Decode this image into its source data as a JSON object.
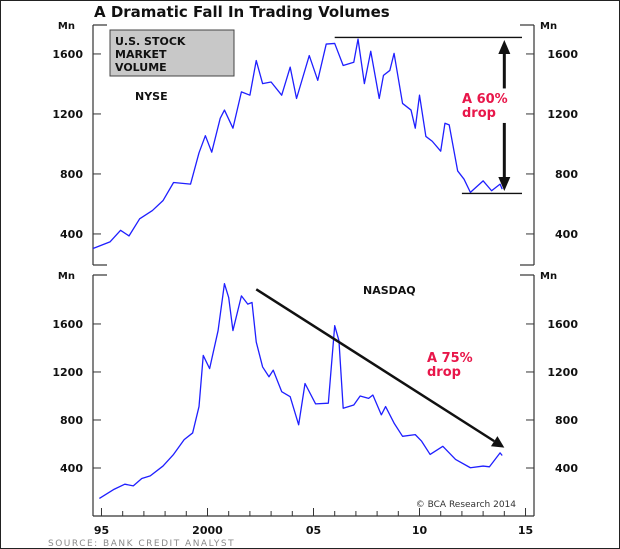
{
  "chart_data": [
    {
      "type": "line",
      "title": "A Dramatic Fall In Trading Volumes",
      "panel_label": "NYSE",
      "box_label": [
        "U.S. STOCK",
        "MARKET",
        "VOLUME"
      ],
      "ylabel": "Mn",
      "ylim": [
        193,
        1793
      ],
      "yticks": [
        400,
        800,
        1200,
        1600
      ],
      "xlim": [
        1994.6,
        2015.4
      ],
      "annotation": "A 60%",
      "annotation2": "drop",
      "color": "#1f1fff",
      "annotation_color": "#e8174a",
      "box_color": "#c8c8c8",
      "reference_lines": [
        {
          "value": 1710,
          "from": 2006.0,
          "to": 2015.4
        },
        {
          "value": 670,
          "from": 2012.0,
          "to": 2015.4
        }
      ],
      "arrow_x": 2014.0,
      "arrow_from": 1680,
      "arrow_to": 700,
      "series": [
        {
          "x": [
            1994.6,
            1995.4,
            1995.9,
            1996.3,
            1996.8,
            1997.4,
            1997.9,
            1998.4,
            1999.2,
            1999.6,
            1999.9,
            2000.2,
            2000.6,
            2000.8,
            2001.2,
            2001.6,
            2002.0,
            2002.3,
            2002.6,
            2003.0,
            2003.5,
            2003.9,
            2004.2,
            2004.8,
            2005.2,
            2005.6,
            2006.0,
            2006.4,
            2006.9,
            2007.1,
            2007.4,
            2007.7,
            2008.1,
            2008.3,
            2008.6,
            2008.8,
            2009.2,
            2009.6,
            2009.8,
            2010.0,
            2010.3,
            2010.6,
            2011.0,
            2011.2,
            2011.4,
            2011.8,
            2012.1,
            2012.4,
            2013.0,
            2013.4,
            2013.8,
            2013.9
          ],
          "values": [
            303,
            347,
            424,
            387,
            501,
            556,
            622,
            743,
            732,
            941,
            1055,
            945,
            1171,
            1226,
            1105,
            1347,
            1325,
            1556,
            1402,
            1413,
            1325,
            1512,
            1303,
            1589,
            1424,
            1666,
            1670,
            1523,
            1545,
            1699,
            1402,
            1618,
            1303,
            1457,
            1490,
            1604,
            1270,
            1226,
            1105,
            1325,
            1050,
            1018,
            952,
            1138,
            1127,
            820,
            765,
            677,
            754,
            688,
            732,
            699
          ]
        }
      ]
    },
    {
      "type": "line",
      "panel_label": "NASDAQ",
      "ylabel": "Mn",
      "ylim": [
        0,
        2008
      ],
      "yticks": [
        400,
        800,
        1200,
        1600
      ],
      "xlim": [
        1994.6,
        2015.4
      ],
      "xticks": [
        "95",
        "2000",
        "05",
        "10",
        "15"
      ],
      "xtick_years": [
        1995,
        2000,
        2005,
        2010,
        2015
      ],
      "annotation": "A 75%",
      "annotation2": "drop",
      "color": "#1f1fff",
      "annotation_color": "#e8174a",
      "arrow": {
        "from": [
          2002.3,
          1889
        ],
        "to": [
          2014.0,
          570
        ]
      },
      "credit": "© BCA Research 2014",
      "series": [
        {
          "x": [
            1994.9,
            1995.6,
            1996.1,
            1996.5,
            1996.9,
            1997.3,
            1997.9,
            1998.4,
            1998.9,
            1999.3,
            1999.6,
            1999.8,
            2000.1,
            2000.5,
            2000.8,
            2001.0,
            2001.2,
            2001.6,
            2001.9,
            2002.1,
            2002.3,
            2002.6,
            2002.9,
            2003.1,
            2003.5,
            2003.9,
            2004.3,
            2004.6,
            2005.1,
            2005.7,
            2006.0,
            2006.2,
            2006.4,
            2006.9,
            2007.2,
            2007.6,
            2007.8,
            2008.2,
            2008.4,
            2008.8,
            2009.2,
            2009.8,
            2010.1,
            2010.5,
            2011.1,
            2011.7,
            2012.4,
            2013.0,
            2013.3,
            2013.8,
            2013.9
          ],
          "values": [
            146,
            223,
            265,
            251,
            312,
            334,
            416,
            513,
            636,
            692,
            912,
            1338,
            1228,
            1545,
            1936,
            1820,
            1545,
            1834,
            1765,
            1779,
            1449,
            1242,
            1160,
            1215,
            1036,
            994,
            760,
            1104,
            934,
            940,
            1586,
            1462,
            898,
            925,
            1000,
            980,
            1008,
            843,
            912,
            774,
            664,
            678,
            623,
            513,
            581,
            471,
            402,
            416,
            410,
            526,
            504
          ]
        }
      ]
    }
  ],
  "source": "SOURCE: BANK CREDIT ANALYST"
}
